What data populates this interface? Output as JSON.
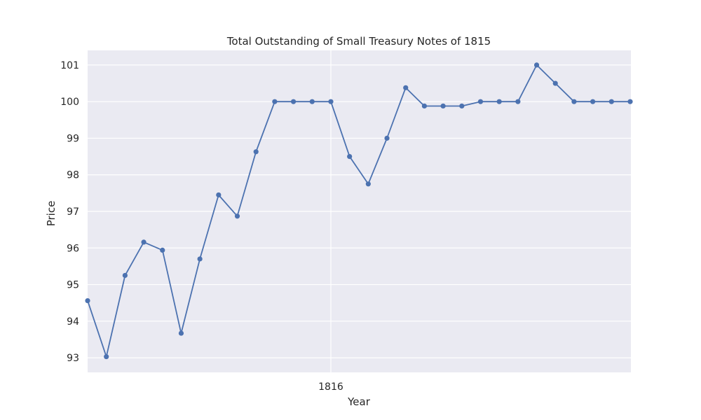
{
  "chart_data": {
    "type": "line",
    "title": "Total Outstanding of Small Treasury Notes of 1815",
    "xlabel": "Year",
    "ylabel": "Price",
    "x_tick_labels": [
      "1816"
    ],
    "y_tick_labels": [
      "93",
      "94",
      "95",
      "96",
      "97",
      "98",
      "99",
      "100",
      "101"
    ],
    "y_ticks": [
      93,
      94,
      95,
      96,
      97,
      98,
      99,
      100,
      101
    ],
    "ylim": [
      92.6,
      101.4
    ],
    "grid": true,
    "legend": "none",
    "colors": {
      "line": "#4c72b0",
      "background": "#eaeaf2",
      "grid": "#ffffff"
    },
    "series": [
      {
        "values": [
          94.56,
          93.03,
          95.25,
          96.16,
          95.94,
          93.67,
          95.7,
          97.45,
          96.87,
          98.63,
          100.0,
          100.0,
          100.0,
          100.0,
          98.5,
          97.75,
          99.0,
          100.38,
          99.88,
          99.88,
          99.88,
          100.0,
          100.0,
          100.0,
          101.0,
          100.5,
          100.0,
          100.0,
          100.0,
          100.0
        ]
      }
    ]
  }
}
